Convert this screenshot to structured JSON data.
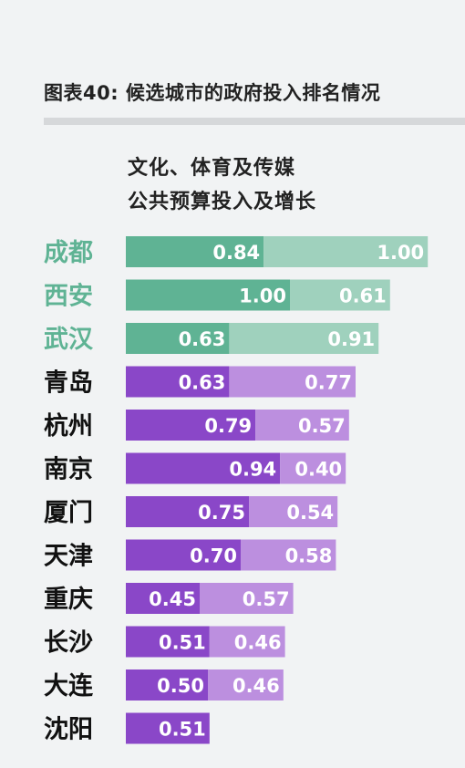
{
  "figure_title": "图表40: 候选城市的政府投入排名情况",
  "chart_data": {
    "type": "bar",
    "title_lines": [
      "文化、体育及传媒",
      "公共预算投入及增长"
    ],
    "categories": [
      "成都",
      "西安",
      "武汉",
      "青岛",
      "杭州",
      "南京",
      "厦门",
      "天津",
      "重庆",
      "长沙",
      "大连",
      "沈阳"
    ],
    "highlighted": [
      "成都",
      "西安",
      "武汉"
    ],
    "series": [
      {
        "values": [
          0.84,
          1.0,
          0.63,
          0.63,
          0.79,
          0.94,
          0.75,
          0.7,
          0.45,
          0.51,
          0.5,
          0.51
        ]
      },
      {
        "values": [
          1.0,
          0.61,
          0.91,
          0.77,
          0.57,
          0.4,
          0.54,
          0.58,
          0.57,
          0.46,
          0.46,
          null
        ]
      }
    ],
    "stacked": true,
    "colors": {
      "highlight_primary": "#5fb394",
      "highlight_secondary": "#9fd1bd",
      "highlight_label": "#5fb394",
      "default_primary": "#8a47c8",
      "default_secondary": "#bc8fdf",
      "default_label": "#111111"
    }
  }
}
